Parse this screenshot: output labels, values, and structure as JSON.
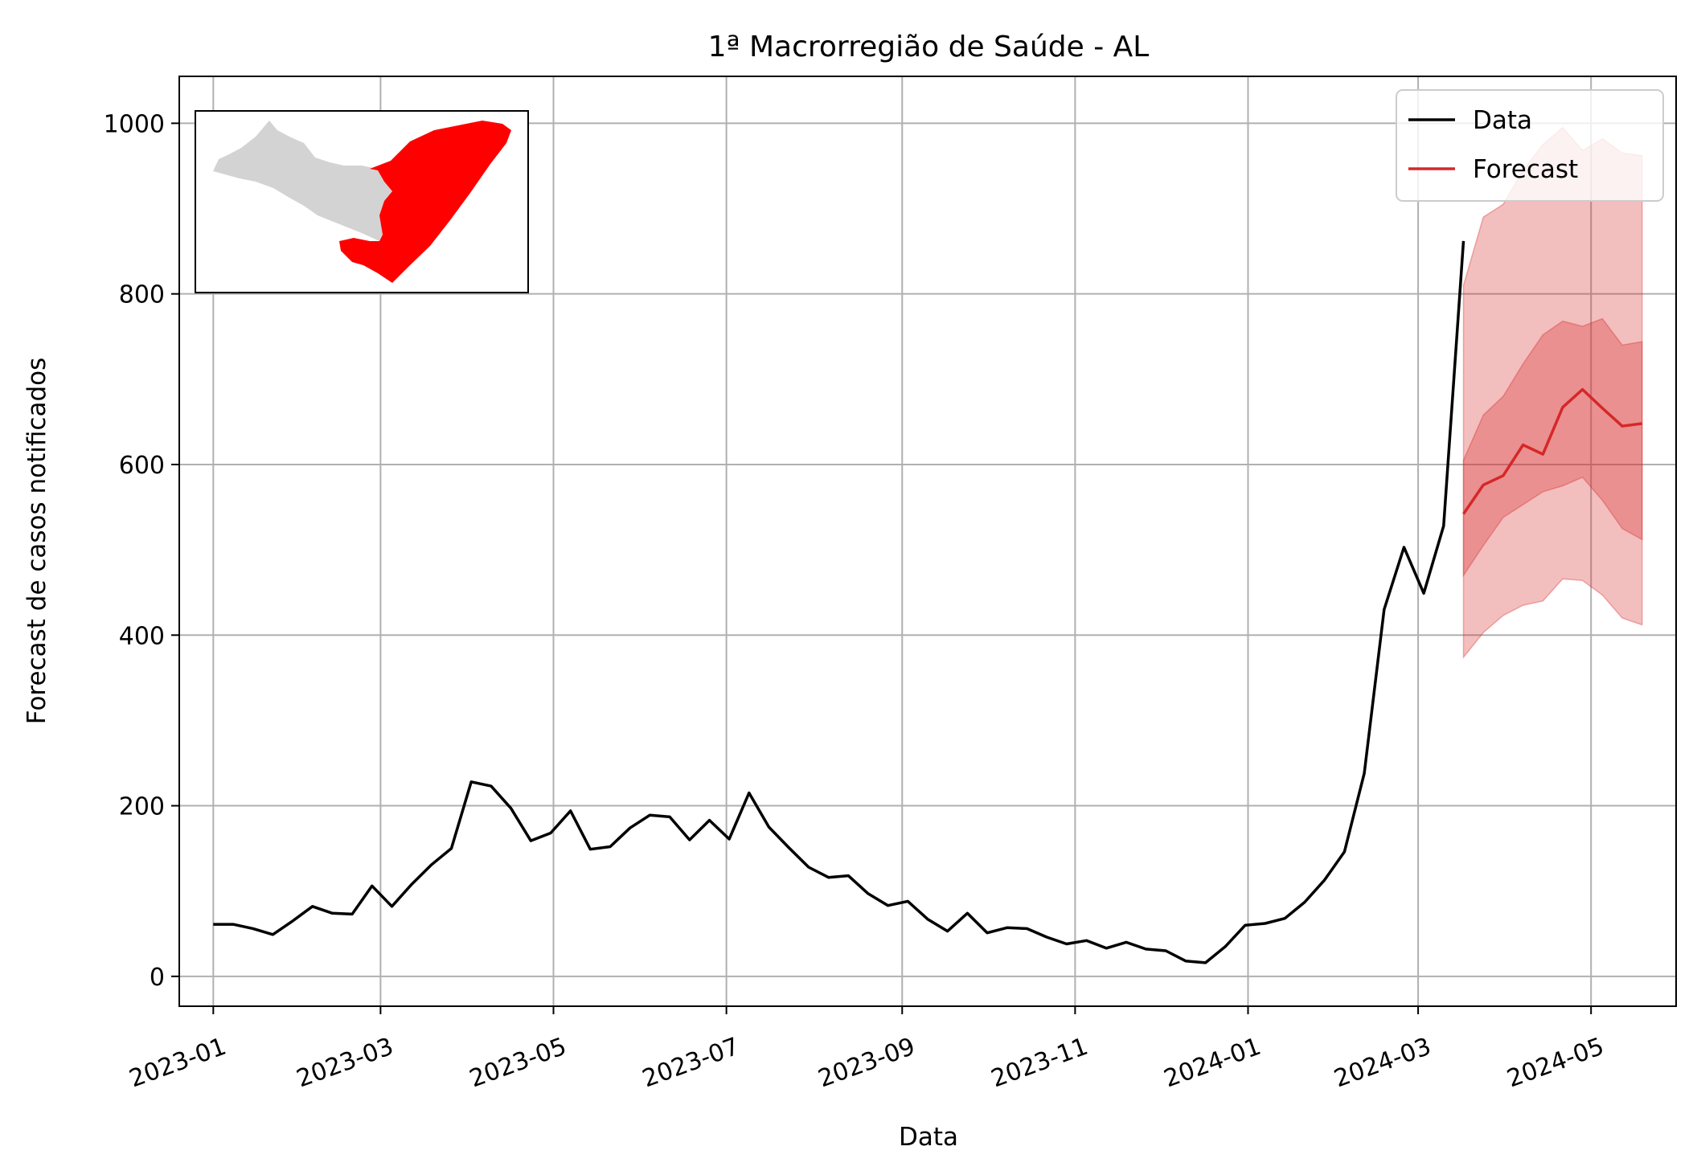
{
  "chart_data": {
    "type": "line",
    "title": "1ª Macrorregião de Saúde - AL",
    "xlabel": "Data",
    "ylabel": "Forecast de casos notificados",
    "ylim": [
      -35,
      1055
    ],
    "xlim": [
      "2022-12-20",
      "2024-05-31"
    ],
    "yticks": [
      0,
      200,
      400,
      600,
      800,
      1000
    ],
    "xticks": [
      "2023-01",
      "2023-03",
      "2023-05",
      "2023-07",
      "2023-09",
      "2023-11",
      "2024-01",
      "2024-03",
      "2024-05"
    ],
    "grid": true,
    "legend_position": "top-right",
    "legend": [
      "Data",
      "Forecast"
    ],
    "inset_map": {
      "region": "AL",
      "highlight_color": "#ff0000",
      "base_color": "#d3d3d3"
    },
    "series": [
      {
        "name": "Data",
        "color": "#000000",
        "x": [
          "2023-01-01",
          "2023-01-08",
          "2023-01-15",
          "2023-01-22",
          "2023-01-29",
          "2023-02-05",
          "2023-02-12",
          "2023-02-19",
          "2023-02-26",
          "2023-03-05",
          "2023-03-12",
          "2023-03-19",
          "2023-03-26",
          "2023-04-02",
          "2023-04-09",
          "2023-04-16",
          "2023-04-23",
          "2023-04-30",
          "2023-05-07",
          "2023-05-14",
          "2023-05-21",
          "2023-05-28",
          "2023-06-04",
          "2023-06-11",
          "2023-06-18",
          "2023-06-25",
          "2023-07-02",
          "2023-07-09",
          "2023-07-16",
          "2023-07-23",
          "2023-07-30",
          "2023-08-06",
          "2023-08-13",
          "2023-08-20",
          "2023-08-27",
          "2023-09-03",
          "2023-09-10",
          "2023-09-17",
          "2023-09-24",
          "2023-10-01",
          "2023-10-08",
          "2023-10-15",
          "2023-10-22",
          "2023-10-29",
          "2023-11-05",
          "2023-11-12",
          "2023-11-19",
          "2023-11-26",
          "2023-12-03",
          "2023-12-10",
          "2023-12-17",
          "2023-12-24",
          "2023-12-31",
          "2024-01-07",
          "2024-01-14",
          "2024-01-21",
          "2024-01-28",
          "2024-02-04",
          "2024-02-11",
          "2024-02-18",
          "2024-02-25",
          "2024-03-03",
          "2024-03-10",
          "2024-03-17"
        ],
        "values": [
          61,
          61,
          56,
          49,
          65,
          82,
          74,
          73,
          106,
          82,
          108,
          131,
          150,
          228,
          223,
          197,
          159,
          168,
          194,
          149,
          152,
          174,
          189,
          187,
          160,
          183,
          161,
          215,
          175,
          151,
          128,
          116,
          118,
          97,
          83,
          88,
          67,
          53,
          74,
          51,
          57,
          56,
          46,
          38,
          42,
          33,
          40,
          32,
          30,
          18,
          16,
          35,
          60,
          62,
          68,
          87,
          113,
          146,
          238,
          430,
          503,
          449,
          528,
          862
        ]
      },
      {
        "name": "Forecast",
        "color": "#d62728",
        "x": [
          "2024-03-17",
          "2024-03-24",
          "2024-03-31",
          "2024-04-07",
          "2024-04-14",
          "2024-04-21",
          "2024-04-28",
          "2024-05-05",
          "2024-05-12",
          "2024-05-19"
        ],
        "values": [
          542,
          576,
          587,
          623,
          612,
          667,
          688,
          666,
          645,
          648
        ],
        "band_50": {
          "lower": [
            470,
            505,
            538,
            553,
            568,
            575,
            585,
            558,
            525,
            512
          ],
          "upper": [
            605,
            658,
            680,
            718,
            752,
            768,
            762,
            771,
            740,
            744
          ]
        },
        "band_90": {
          "lower": [
            374,
            403,
            423,
            435,
            440,
            466,
            464,
            447,
            420,
            412
          ],
          "upper": [
            810,
            890,
            905,
            945,
            975,
            995,
            968,
            982,
            965,
            962
          ]
        }
      }
    ]
  }
}
